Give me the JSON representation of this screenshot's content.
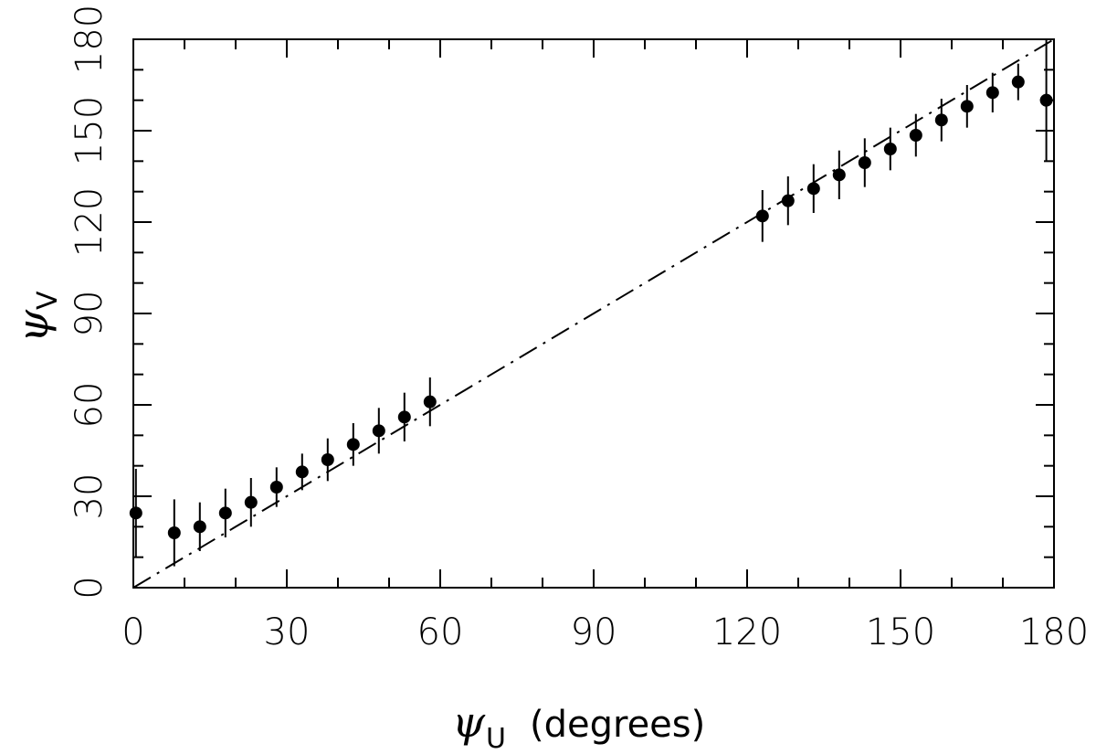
{
  "chart_data": {
    "type": "scatter",
    "xlabel": {
      "symbol": "ψ",
      "subscript": "U",
      "rest": "(degrees)"
    },
    "ylabel": {
      "symbol": "ψ",
      "subscript": "V"
    },
    "xlim": [
      0,
      180
    ],
    "ylim": [
      0,
      180
    ],
    "xticks": [
      0,
      30,
      60,
      90,
      120,
      150,
      180
    ],
    "yticks": [
      0,
      30,
      60,
      90,
      120,
      150,
      180
    ],
    "reference_line": {
      "style": "dash-dot",
      "from": [
        0,
        0
      ],
      "to": [
        180,
        180
      ]
    },
    "series": [
      {
        "x": [
          0.5,
          8,
          13,
          18,
          23,
          28,
          33,
          38,
          43,
          48,
          53,
          58,
          123,
          128,
          133,
          138,
          143,
          148,
          153,
          158,
          163,
          168,
          173,
          178.5
        ],
        "y": [
          24.5,
          18,
          20,
          24.5,
          28,
          33,
          38,
          42,
          47,
          51.5,
          56,
          61,
          122,
          127,
          131,
          135.5,
          139.5,
          144,
          148.5,
          153.5,
          158,
          162.5,
          166,
          160
        ],
        "yerr": [
          14.5,
          11,
          8,
          8,
          8,
          6.5,
          6,
          7,
          7,
          7.5,
          8,
          8,
          8.5,
          8,
          8,
          8,
          8,
          7,
          7,
          7,
          7,
          6.5,
          6,
          20
        ]
      }
    ]
  }
}
